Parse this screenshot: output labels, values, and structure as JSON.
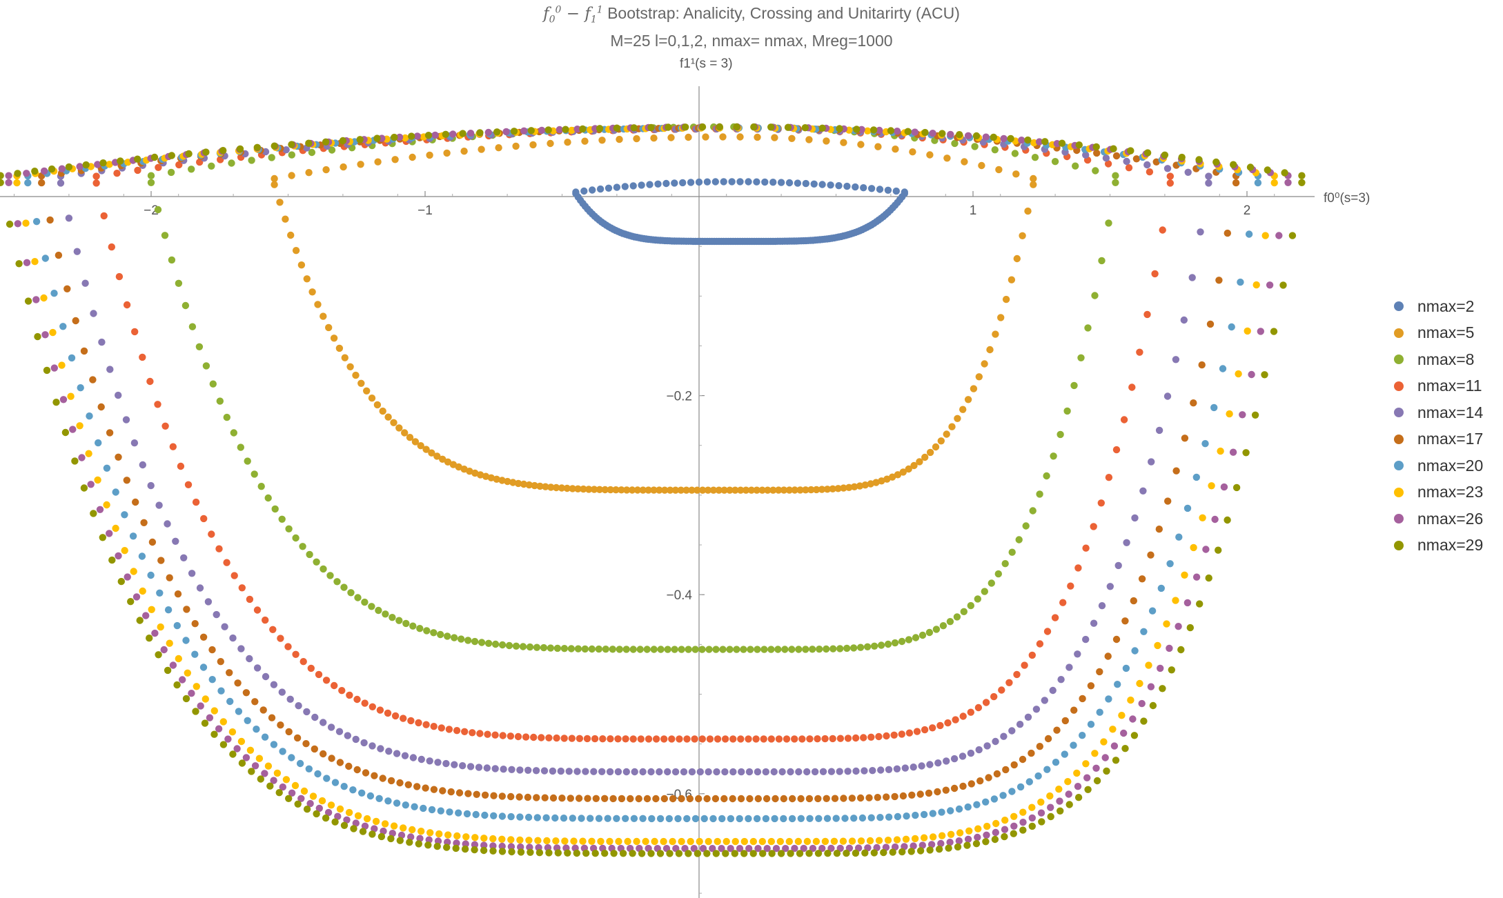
{
  "chart_data": {
    "type": "scatter",
    "title_main": "Bootstrap: Analicity, Crossing and Unitarirty (ACU)",
    "title_sub": "M=25  l=0,1,2, nmax= nmax, Mreg=1000",
    "xlabel": "f0⁰(s=3)",
    "ylabel": "f1¹(s = 3)",
    "xlim": [
      -2.55,
      2.25
    ],
    "ylim": [
      -0.77,
      0.08
    ],
    "x_ticks": [
      -2,
      -1,
      1,
      2
    ],
    "y_ticks": [
      -0.2,
      -0.4,
      -0.6
    ],
    "legend_position": "right",
    "grid": false,
    "series": [
      {
        "name": "nmax=2",
        "color": "#5E81B5",
        "x_left": -0.45,
        "x_right": 0.75,
        "y_top": 0.015,
        "y_bottom": -0.045,
        "y_top_max": 0.015
      },
      {
        "name": "nmax=5",
        "color": "#E19C24",
        "x_left": -1.55,
        "x_right": 1.22,
        "y_top": 0.06,
        "y_bottom": -0.295,
        "y_top_max": 0.06
      },
      {
        "name": "nmax=8",
        "color": "#8FB032",
        "x_left": -2.0,
        "x_right": 1.52,
        "y_top": 0.07,
        "y_bottom": -0.455,
        "y_top_max": 0.07
      },
      {
        "name": "nmax=11",
        "color": "#EB6235",
        "x_left": -2.2,
        "x_right": 1.72,
        "y_top": 0.068,
        "y_bottom": -0.545,
        "y_top_max": 0.068
      },
      {
        "name": "nmax=14",
        "color": "#8778B3",
        "x_left": -2.33,
        "x_right": 1.86,
        "y_top": 0.068,
        "y_bottom": -0.578,
        "y_top_max": 0.068
      },
      {
        "name": "nmax=17",
        "color": "#C56E1A",
        "x_left": -2.4,
        "x_right": 1.96,
        "y_top": 0.069,
        "y_bottom": -0.605,
        "y_top_max": 0.069
      },
      {
        "name": "nmax=20",
        "color": "#5D9EC7",
        "x_left": -2.45,
        "x_right": 2.04,
        "y_top": 0.069,
        "y_bottom": -0.625,
        "y_top_max": 0.069
      },
      {
        "name": "nmax=23",
        "color": "#FFBF00",
        "x_left": -2.49,
        "x_right": 2.1,
        "y_top": 0.069,
        "y_bottom": -0.648,
        "y_top_max": 0.069
      },
      {
        "name": "nmax=26",
        "color": "#A5609D",
        "x_left": -2.52,
        "x_right": 2.15,
        "y_top": 0.07,
        "y_bottom": -0.655,
        "y_top_max": 0.07
      },
      {
        "name": "nmax=29",
        "color": "#929600",
        "x_left": -2.55,
        "x_right": 2.2,
        "y_top": 0.07,
        "y_bottom": -0.66,
        "y_top_max": 0.07
      }
    ]
  }
}
